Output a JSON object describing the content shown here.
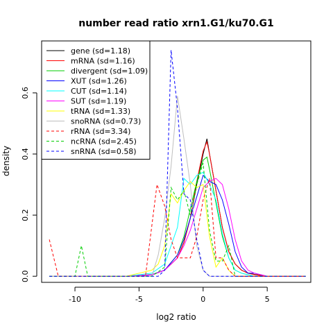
{
  "chart_data": {
    "type": "line",
    "title": "number read ratio xrn1.G1/ku70.G1",
    "xlabel": "log2 ratio",
    "ylabel": "density",
    "xlim": [
      -12.6,
      8.4
    ],
    "ylim": [
      -0.02,
      0.77
    ],
    "xticks": [
      -10,
      -5,
      0,
      5
    ],
    "xtick_labels": [
      "-10",
      "-5",
      "0",
      "5"
    ],
    "yticks": [
      0.0,
      0.2,
      0.4,
      0.6
    ],
    "ytick_labels": [
      "0.0",
      "0.2",
      "0.4",
      "0.6"
    ],
    "grid": false,
    "legend_position": "top-left",
    "series": [
      {
        "name": "gene (sd=1.18)",
        "color": "#000000",
        "dash": "solid",
        "x": [
          -12,
          -6,
          -4,
          -3,
          -2,
          -1.5,
          -1,
          -0.5,
          0,
          0.3,
          0.5,
          1,
          1.5,
          2,
          2.5,
          3,
          3.5,
          4,
          4.5,
          5,
          8
        ],
        "y": [
          0.0,
          0.0,
          0.005,
          0.02,
          0.06,
          0.11,
          0.19,
          0.3,
          0.4,
          0.45,
          0.4,
          0.28,
          0.16,
          0.08,
          0.04,
          0.02,
          0.01,
          0.006,
          0.003,
          0.0,
          0.0
        ]
      },
      {
        "name": "mRNA (sd=1.16)",
        "color": "#ff0000",
        "dash": "solid",
        "x": [
          -12,
          -6,
          -4,
          -3,
          -2,
          -1.5,
          -1,
          -0.5,
          0,
          0.3,
          0.5,
          1,
          1.5,
          2,
          2.5,
          3,
          3.5,
          4,
          5,
          8
        ],
        "y": [
          0.0,
          0.0,
          0.004,
          0.02,
          0.06,
          0.11,
          0.19,
          0.31,
          0.41,
          0.44,
          0.4,
          0.28,
          0.16,
          0.08,
          0.04,
          0.02,
          0.01,
          0.005,
          0.0,
          0.0
        ]
      },
      {
        "name": "divergent (sd=1.09)",
        "color": "#00cd00",
        "dash": "solid",
        "x": [
          -12,
          -6,
          -4,
          -3,
          -2,
          -1.5,
          -1,
          -0.5,
          0,
          0.3,
          0.5,
          1,
          1.5,
          2,
          2.5,
          3,
          4,
          8
        ],
        "y": [
          0.0,
          0.0,
          0.005,
          0.02,
          0.07,
          0.13,
          0.22,
          0.31,
          0.38,
          0.39,
          0.35,
          0.24,
          0.13,
          0.06,
          0.02,
          0.01,
          0.0,
          0.0
        ]
      },
      {
        "name": "XUT (sd=1.26)",
        "color": "#0000ff",
        "dash": "solid",
        "x": [
          -12,
          -6,
          -4,
          -3,
          -2,
          -1.5,
          -1,
          -0.5,
          0,
          0.5,
          1,
          1.5,
          2,
          2.5,
          3,
          3.5,
          4,
          4.5,
          5,
          8
        ],
        "y": [
          0.0,
          0.0,
          0.005,
          0.02,
          0.07,
          0.12,
          0.19,
          0.26,
          0.33,
          0.31,
          0.3,
          0.25,
          0.17,
          0.08,
          0.03,
          0.01,
          0.01,
          0.005,
          0.0,
          0.0
        ]
      },
      {
        "name": "CUT (sd=1.14)",
        "color": "#00ffff",
        "dash": "solid",
        "x": [
          -12,
          -6,
          -4,
          -3,
          -2,
          -1.5,
          -1,
          -0.5,
          0,
          0.5,
          1,
          1.5,
          2,
          2.5,
          3,
          4,
          8
        ],
        "y": [
          0.0,
          0.0,
          0.01,
          0.04,
          0.16,
          0.32,
          0.3,
          0.33,
          0.34,
          0.3,
          0.25,
          0.14,
          0.06,
          0.02,
          0.01,
          0.0,
          0.0
        ]
      },
      {
        "name": "SUT (sd=1.19)",
        "color": "#ff00ff",
        "dash": "solid",
        "x": [
          -12,
          -6,
          -4,
          -3,
          -2,
          -1.5,
          -1,
          -0.5,
          0,
          0.5,
          1,
          1.5,
          2,
          2.5,
          3,
          3.5,
          4,
          4.5,
          5,
          8
        ],
        "y": [
          0.0,
          0.0,
          0.004,
          0.02,
          0.06,
          0.1,
          0.15,
          0.22,
          0.29,
          0.31,
          0.32,
          0.3,
          0.22,
          0.12,
          0.05,
          0.02,
          0.01,
          0.005,
          0.0,
          0.0
        ]
      },
      {
        "name": "tRNA (sd=1.33)",
        "color": "#ffff00",
        "dash": "solid",
        "x": [
          -12,
          -6,
          -5,
          -4,
          -3.5,
          -3,
          -2.5,
          -2,
          -1.5,
          -1,
          -0.5,
          0,
          0.5,
          1,
          1.5,
          2,
          2.5,
          3,
          8
        ],
        "y": [
          0.0,
          0.0,
          0.01,
          0.02,
          0.04,
          0.1,
          0.27,
          0.24,
          0.28,
          0.31,
          0.29,
          0.3,
          0.13,
          0.03,
          0.06,
          0.02,
          0.0,
          0.0,
          0.0
        ]
      },
      {
        "name": "snoRNA (sd=0.73)",
        "color": "#bebebe",
        "dash": "solid",
        "x": [
          -12,
          -4,
          -3.5,
          -3,
          -2.5,
          -2,
          -1.5,
          -1,
          -0.5,
          0,
          0.5,
          1,
          8
        ],
        "y": [
          0.0,
          0.0,
          0.07,
          0.19,
          0.36,
          0.59,
          0.45,
          0.3,
          0.1,
          0.02,
          0.0,
          0.0,
          0.0
        ]
      },
      {
        "name": "rRNA (sd=3.34)",
        "color": "#ff0000",
        "dash": "dashed",
        "x": [
          -12,
          -11.3,
          -11,
          -4.5,
          -3.6,
          -3,
          -2.5,
          -2,
          -1.5,
          -1,
          -0.5,
          0,
          0.5,
          1,
          1.5,
          2,
          2.5,
          3,
          8
        ],
        "y": [
          0.12,
          0.0,
          0.0,
          0.0,
          0.3,
          0.23,
          0.12,
          0.06,
          0.06,
          0.06,
          0.13,
          0.25,
          0.32,
          0.06,
          0.06,
          0.02,
          0.0,
          0.0,
          0.0
        ]
      },
      {
        "name": "ncRNA (sd=2.45)",
        "color": "#00cd00",
        "dash": "dashed",
        "x": [
          -12,
          -10,
          -9.5,
          -9,
          -4,
          -3,
          -2.5,
          -2,
          -1.5,
          -1,
          -0.5,
          0,
          0.5,
          1,
          1.5,
          2,
          2.5,
          3,
          8
        ],
        "y": [
          0.0,
          0.0,
          0.1,
          0.0,
          0.0,
          0.03,
          0.29,
          0.25,
          0.28,
          0.2,
          0.3,
          0.37,
          0.15,
          0.05,
          0.05,
          0.1,
          0.0,
          0.0,
          0.0
        ]
      },
      {
        "name": "snRNA (sd=0.58)",
        "color": "#0000ff",
        "dash": "dashed",
        "x": [
          -12,
          -3.5,
          -3,
          -2.5,
          -2,
          -1.5,
          -1,
          -0.5,
          0,
          0.5,
          1,
          8
        ],
        "y": [
          0.0,
          0.0,
          0.02,
          0.74,
          0.55,
          0.27,
          0.25,
          0.12,
          0.02,
          0.0,
          0.0,
          0.0
        ]
      }
    ]
  }
}
